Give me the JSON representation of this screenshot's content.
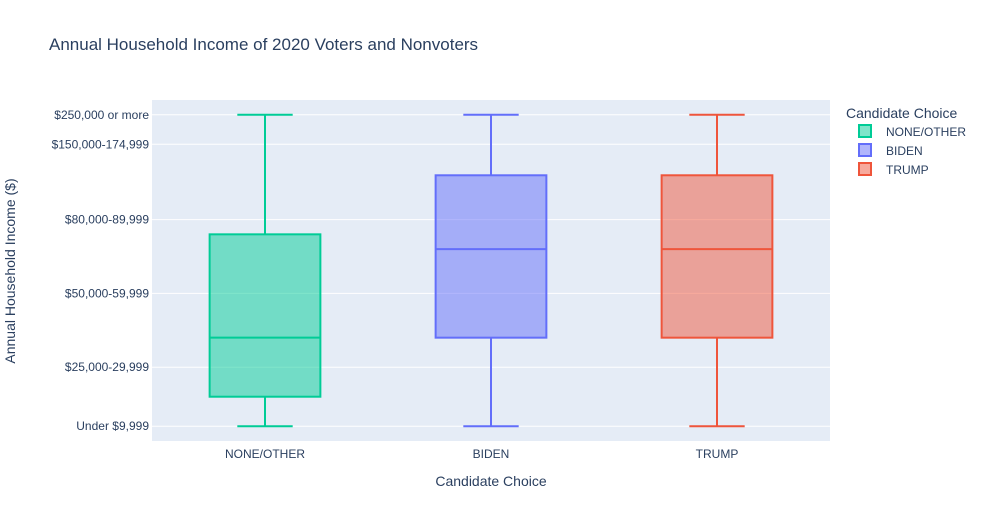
{
  "chart_data": {
    "type": "box",
    "title": "Annual Household Income of 2020 Voters and Nonvoters",
    "xlabel": "Candidate Choice",
    "ylabel": "Annual Household Income ($)",
    "categories": [
      "NONE/OTHER",
      "BIDEN",
      "TRUMP"
    ],
    "y_categories": [
      "Under $9,999",
      "$25,000-29,999",
      "$50,000-59,999",
      "$80,000-89,999",
      "$150,000-174,999",
      "$250,000 or more"
    ],
    "y_ticks": [
      {
        "label": "Under $9,999",
        "value": 0
      },
      {
        "label": "$25,000-29,999",
        "value": 2
      },
      {
        "label": "$50,000-59,999",
        "value": 4.5
      },
      {
        "label": "$80,000-89,999",
        "value": 7
      },
      {
        "label": "$150,000-174,999",
        "value": 9.55
      },
      {
        "label": "$250,000 or more",
        "value": 10.55
      }
    ],
    "ylim": [
      -0.5,
      11.05
    ],
    "legend": {
      "title": "Candidate Choice",
      "position": "top-right"
    },
    "series": [
      {
        "name": "NONE/OTHER",
        "color": "#00cc96",
        "min": 0,
        "q1": 1,
        "median": 3,
        "q3": 6.5,
        "max": 10.55
      },
      {
        "name": "BIDEN",
        "color": "#636efa",
        "min": 0,
        "q1": 3,
        "median": 6,
        "q3": 8.5,
        "max": 10.55
      },
      {
        "name": "TRUMP",
        "color": "#ef553b",
        "min": 0,
        "q1": 3,
        "median": 6,
        "q3": 8.5,
        "max": 10.55
      }
    ]
  }
}
